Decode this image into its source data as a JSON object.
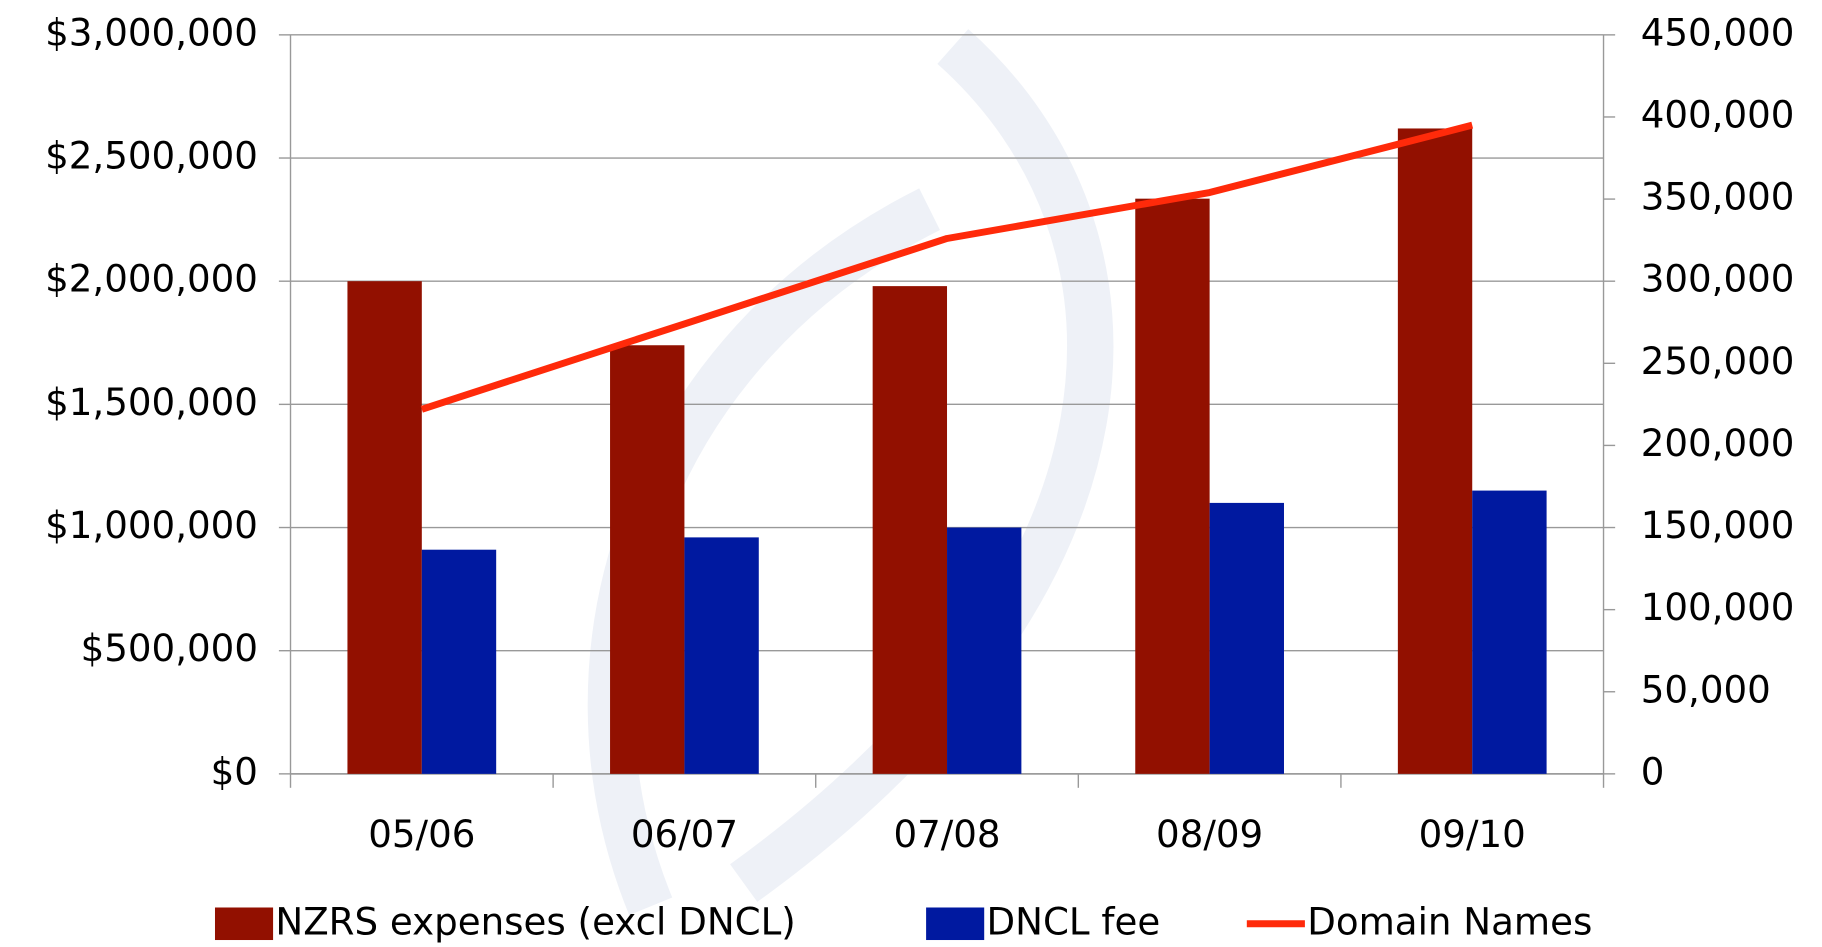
{
  "chart_data": {
    "type": "bar",
    "categories": [
      "05/06",
      "06/07",
      "07/08",
      "08/09",
      "09/10"
    ],
    "series": [
      {
        "name": "NZRS expenses (excl DNCL)",
        "color": "#921000",
        "values": [
          2000000,
          1740000,
          1980000,
          2335000,
          2620000
        ]
      },
      {
        "name": "DNCL fee",
        "color": "#0019a0",
        "values": [
          910000,
          960000,
          1000000,
          1100000,
          1150000
        ]
      },
      {
        "name": "Domain Names",
        "color": "#ff2a0a",
        "type": "line",
        "axis": "y2",
        "values": [
          222000,
          274000,
          326000,
          354000,
          395000
        ]
      }
    ],
    "ylim": [
      0,
      3000000
    ],
    "yticks": [
      {
        "value": 0,
        "label": "$0"
      },
      {
        "value": 500000,
        "label": "$500,000"
      },
      {
        "value": 1000000,
        "label": "$1,000,000"
      },
      {
        "value": 1500000,
        "label": "$1,500,000"
      },
      {
        "value": 2000000,
        "label": "$2,000,000"
      },
      {
        "value": 2500000,
        "label": "$2,500,000"
      },
      {
        "value": 3000000,
        "label": "$3,000,000"
      }
    ],
    "y2lim": [
      0,
      450000
    ],
    "y2ticks": [
      0,
      {
        "value": 50000,
        "label": "50,000"
      },
      {
        "value": 100000,
        "label": "100,000"
      },
      {
        "value": 150000,
        "label": "150,000"
      },
      {
        "value": 200000,
        "label": "200,000"
      },
      {
        "value": 250000,
        "label": "250,000"
      },
      {
        "value": 300000,
        "label": "300,000"
      },
      {
        "value": 350000,
        "label": "350,000"
      },
      {
        "value": 400000,
        "label": "400,000"
      },
      {
        "value": 450000,
        "label": "450,000"
      }
    ],
    "grid": true,
    "legend": "bottom"
  }
}
